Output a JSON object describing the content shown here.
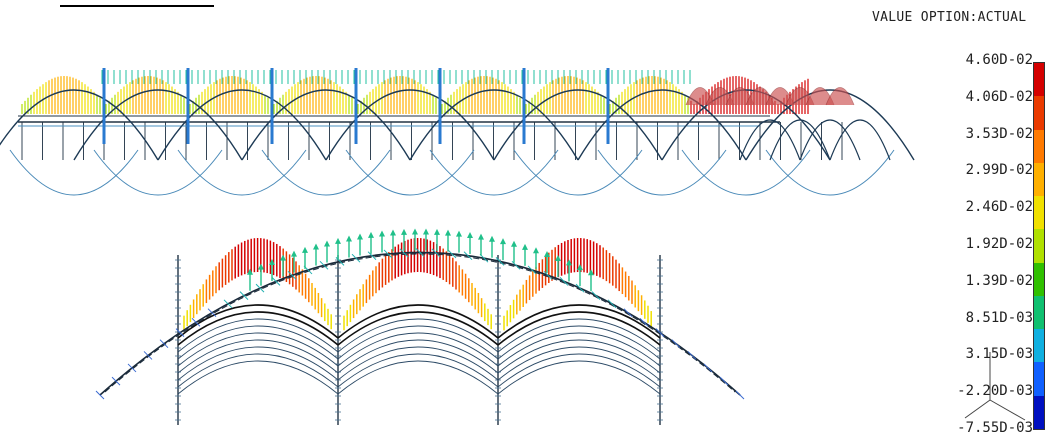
{
  "header": {
    "value_option": "VALUE OPTION:ACTUAL"
  },
  "legend": {
    "labels": [
      "4.60D-02",
      "4.06D-02",
      "3.53D-02",
      "2.99D-02",
      "2.46D-02",
      "1.92D-02",
      "1.39D-02",
      "8.51D-03",
      "3.15D-03",
      "-2.20D-03",
      "-7.55D-03"
    ],
    "colors": [
      "#d40000",
      "#ea3a00",
      "#ff7a00",
      "#ffb000",
      "#f0e000",
      "#b0e000",
      "#30c000",
      "#10c070",
      "#10b0e0",
      "#1060ff",
      "#0010c0"
    ]
  },
  "icons": {
    "axis_triad": "axis-triad-icon"
  }
}
